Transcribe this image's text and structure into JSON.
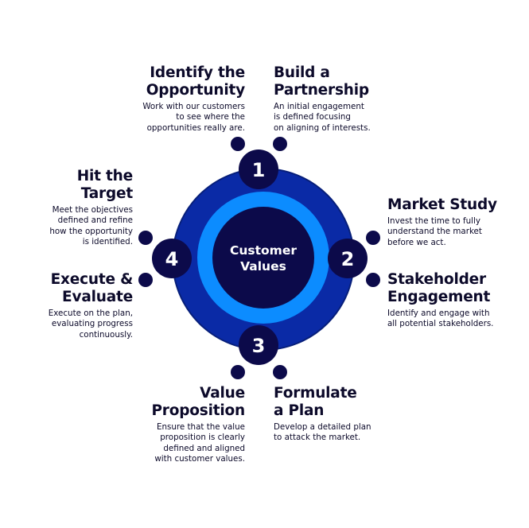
{
  "center": {
    "line1": "Customer",
    "line2": "Values"
  },
  "numbers": {
    "n1": "1",
    "n2": "2",
    "n3": "3",
    "n4": "4"
  },
  "colors": {
    "navy": "#0c0a4a",
    "ring_outer": "#0a2aa6",
    "ring_middle": "#0c8cff",
    "center_fill": "#0c0a4a",
    "text": "#0c0a2a"
  },
  "steps": {
    "identify": {
      "title1": "Identify the",
      "title2": "Opportunity",
      "desc1": "Work with our customers",
      "desc2": "to see where the",
      "desc3": "opportunities really are."
    },
    "partnership": {
      "title1": "Build a",
      "title2": "Partnership",
      "desc1": "An initial engagement",
      "desc2": "is defined focusing",
      "desc3": "on aligning of interests."
    },
    "market": {
      "title1": "Market Study",
      "desc1": "Invest the time to fully",
      "desc2": "understand the market",
      "desc3": "before we act."
    },
    "stakeholder": {
      "title1": "Stakeholder",
      "title2": "Engagement",
      "desc1": "Identify and engage with",
      "desc2": "all potential stakeholders."
    },
    "formulate": {
      "title1": "Formulate",
      "title2": "a Plan",
      "desc1": "Develop a detailed plan",
      "desc2": "to attack the market."
    },
    "value": {
      "title1": "Value",
      "title2": "Proposition",
      "desc1": "Ensure that the value",
      "desc2": "proposition is clearly",
      "desc3": "defined and aligned",
      "desc4": "with customer values."
    },
    "execute": {
      "title1": "Execute &",
      "title2": "Evaluate",
      "desc1": "Execute on the plan,",
      "desc2": "evaluating progress",
      "desc3": "continuously."
    },
    "target": {
      "title1": "Hit the",
      "title2": "Target",
      "desc1": "Meet the objectives",
      "desc2": "defined and refine",
      "desc3": "how the opportunity",
      "desc4": "is identified."
    }
  }
}
